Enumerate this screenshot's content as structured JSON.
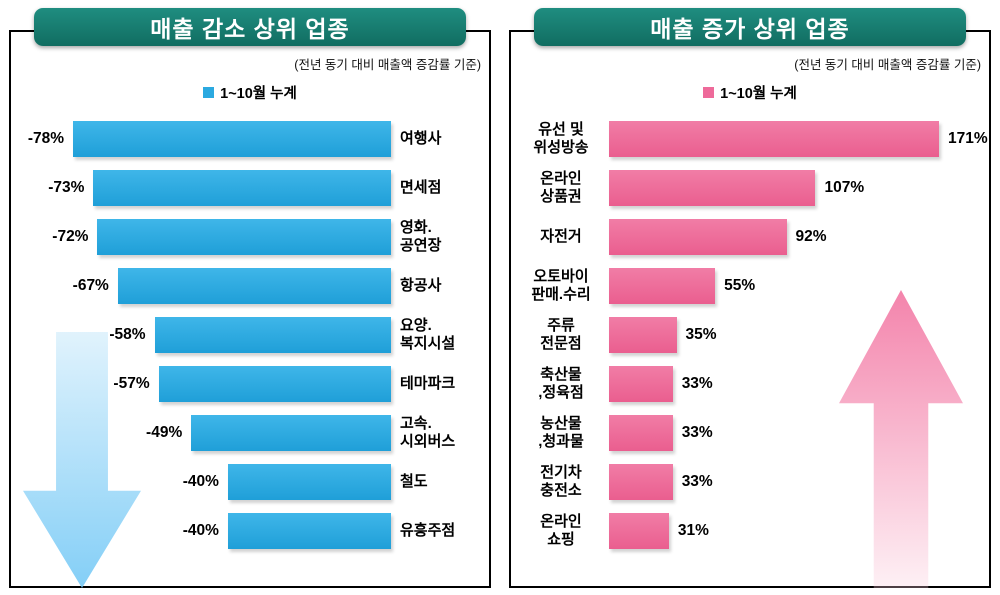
{
  "chart_data": [
    {
      "type": "bar",
      "orientation": "horizontal",
      "title": "매출 감소 상위 업종",
      "subtitle": "(전년 동기 대비 매출액 증감률 기준)",
      "legend": "1~10월 누계",
      "bar_color": "#2BA9E0",
      "arrow": "down",
      "axis_max": 78,
      "rows": [
        {
          "category": "여행사",
          "value": -78,
          "label": "-78%"
        },
        {
          "category": "면세점",
          "value": -73,
          "label": "-73%"
        },
        {
          "category": "영화.\n공연장",
          "value": -72,
          "label": "-72%"
        },
        {
          "category": "항공사",
          "value": -67,
          "label": "-67%"
        },
        {
          "category": "요양.\n복지시설",
          "value": -58,
          "label": "-58%"
        },
        {
          "category": "테마파크",
          "value": -57,
          "label": "-57%"
        },
        {
          "category": "고속.\n시외버스",
          "value": -49,
          "label": "-49%"
        },
        {
          "category": "철도",
          "value": -40,
          "label": "-40%"
        },
        {
          "category": "유흥주점",
          "value": -40,
          "label": "-40%"
        }
      ]
    },
    {
      "type": "bar",
      "orientation": "horizontal",
      "title": "매출 증가 상위 업종",
      "subtitle": "(전년 동기 대비 매출액 증감률 기준)",
      "legend": "1~10월 누계",
      "bar_color": "#EE6A9A",
      "arrow": "up",
      "axis_max": 171,
      "rows": [
        {
          "category": "유선 및\n위성방송",
          "value": 171,
          "label": "171%"
        },
        {
          "category": "온라인\n상품권",
          "value": 107,
          "label": "107%"
        },
        {
          "category": "자전거",
          "value": 92,
          "label": "92%"
        },
        {
          "category": "오토바이\n판매.수리",
          "value": 55,
          "label": "55%"
        },
        {
          "category": "주류\n전문점",
          "value": 35,
          "label": "35%"
        },
        {
          "category": "축산물\n,정육점",
          "value": 33,
          "label": "33%"
        },
        {
          "category": "농산물\n,청과물",
          "value": 33,
          "label": "33%"
        },
        {
          "category": "전기차\n충전소",
          "value": 33,
          "label": "33%"
        },
        {
          "category": "온라인\n쇼핑",
          "value": 31,
          "label": "31%"
        }
      ]
    }
  ]
}
